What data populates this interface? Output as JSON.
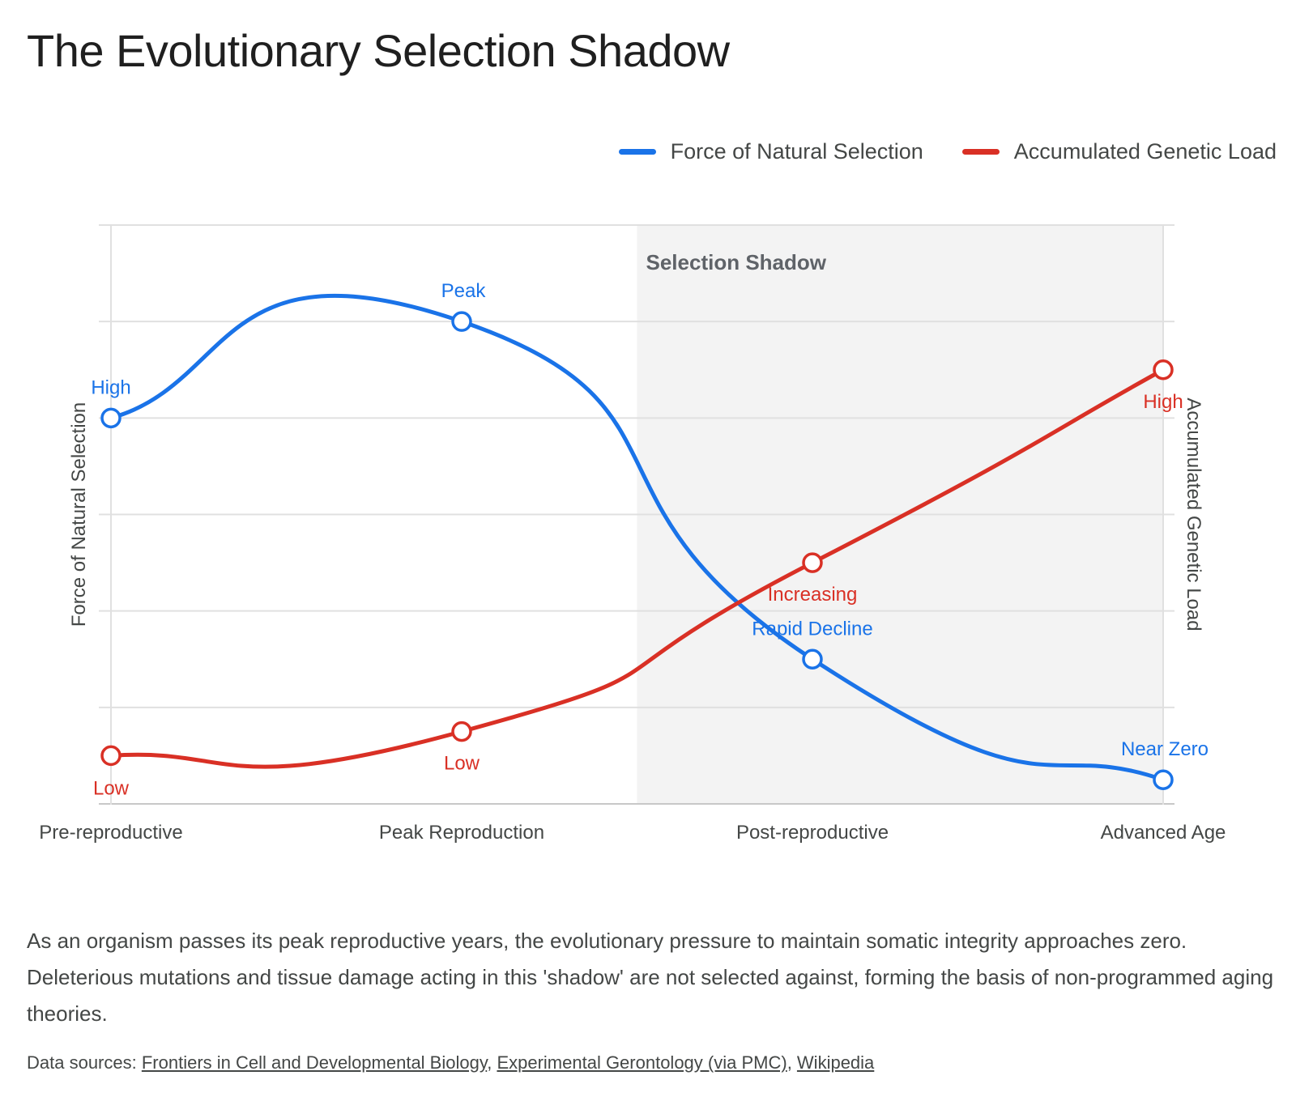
{
  "title": "The Evolutionary Selection Shadow",
  "caption": "As an organism passes its peak reproductive years, the evolutionary pressure to maintain somatic integrity approaches zero. Deleterious mutations and tissue damage acting in this 'shadow' are not selected against, forming the basis of non-programmed aging theories.",
  "sources": {
    "prefix": "Data sources: ",
    "links": [
      "Frontiers in Cell and Developmental Biology",
      "Experimental Gerontology (via PMC)",
      "Wikipedia"
    ]
  },
  "chart_data": {
    "type": "line",
    "title": "The Evolutionary Selection Shadow",
    "categories": [
      "Pre-reproductive",
      "Peak Reproduction",
      "Post-reproductive",
      "Advanced Age"
    ],
    "ylabel_left": "Force of Natural Selection",
    "ylabel_right": "Accumulated Genetic Load",
    "ylim": [
      0,
      6
    ],
    "y_tick_labels_shown": false,
    "grid": true,
    "legend_position": "top-right",
    "shaded_region": {
      "label": "Selection Shadow",
      "x_start": 1.5,
      "x_end": 3,
      "color": "#f3f3f3"
    },
    "series": [
      {
        "name": "Force of Natural Selection",
        "color": "#1a73e8",
        "axis": "left",
        "values": [
          4,
          5,
          1.5,
          0.25
        ],
        "point_labels": [
          "High",
          "Peak",
          "Rapid Decline",
          "Near Zero"
        ]
      },
      {
        "name": "Accumulated Genetic Load",
        "color": "#d93025",
        "axis": "right",
        "values": [
          0.5,
          0.75,
          2.5,
          4.5
        ],
        "point_labels": [
          "Low",
          "Low",
          "Increasing",
          "High"
        ]
      }
    ]
  }
}
